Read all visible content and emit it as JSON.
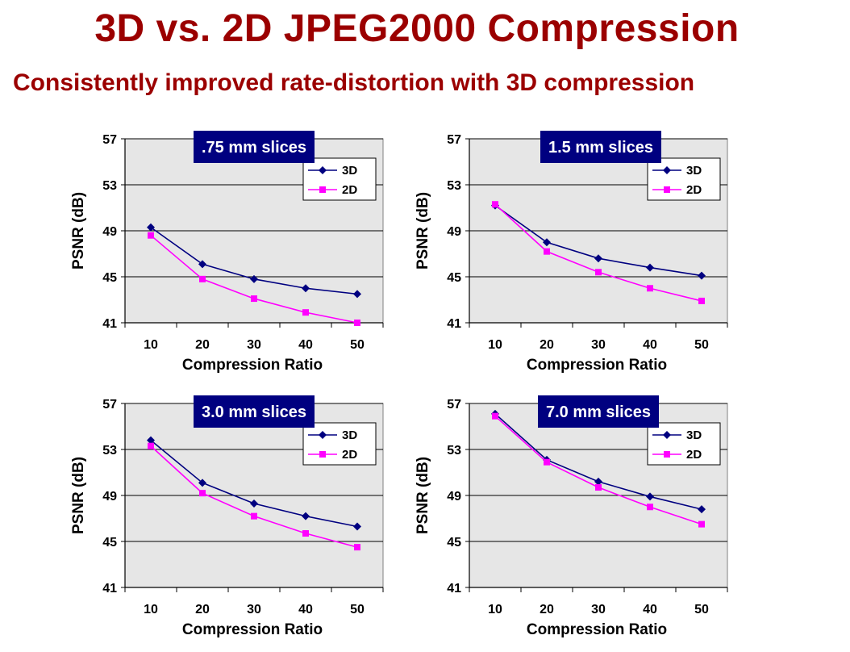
{
  "title": "3D vs. 2D JPEG2000 Compression",
  "subtitle": "Consistently improved rate-distortion with 3D compression",
  "colors": {
    "title": "#9b0000",
    "series_3d": "#000080",
    "series_2d": "#ff00ff",
    "plot_bg": "#e6e6e6",
    "box_bg": "#000080",
    "box_text": "#ffffff"
  },
  "chart_data": [
    {
      "type": "line",
      "title": ".75 mm slices",
      "xlabel": "Compression Ratio",
      "ylabel": "PSNR (dB)",
      "x": [
        10,
        20,
        30,
        40,
        50
      ],
      "ylim": [
        41,
        57
      ],
      "yticks": [
        41,
        45,
        49,
        53,
        57
      ],
      "grid": "horizontal",
      "legend": "top-right",
      "series": [
        {
          "name": "3D",
          "values": [
            49.3,
            46.1,
            44.8,
            44.0,
            43.5
          ]
        },
        {
          "name": "2D",
          "values": [
            48.6,
            44.8,
            43.1,
            41.9,
            41.0
          ]
        }
      ]
    },
    {
      "type": "line",
      "title": "1.5 mm slices",
      "xlabel": "Compression Ratio",
      "ylabel": "PSNR (dB)",
      "x": [
        10,
        20,
        30,
        40,
        50
      ],
      "ylim": [
        41,
        57
      ],
      "yticks": [
        41,
        45,
        49,
        53,
        57
      ],
      "grid": "horizontal",
      "legend": "top-right",
      "series": [
        {
          "name": "3D",
          "values": [
            51.2,
            48.0,
            46.6,
            45.8,
            45.1
          ]
        },
        {
          "name": "2D",
          "values": [
            51.3,
            47.2,
            45.4,
            44.0,
            42.9
          ]
        }
      ]
    },
    {
      "type": "line",
      "title": "3.0 mm slices",
      "xlabel": "Compression Ratio",
      "ylabel": "PSNR (dB)",
      "x": [
        10,
        20,
        30,
        40,
        50
      ],
      "ylim": [
        41,
        57
      ],
      "yticks": [
        41,
        45,
        49,
        53,
        57
      ],
      "grid": "horizontal",
      "legend": "top-right",
      "series": [
        {
          "name": "3D",
          "values": [
            53.8,
            50.1,
            48.3,
            47.2,
            46.3
          ]
        },
        {
          "name": "2D",
          "values": [
            53.3,
            49.2,
            47.2,
            45.7,
            44.5
          ]
        }
      ]
    },
    {
      "type": "line",
      "title": "7.0 mm slices",
      "xlabel": "Compression Ratio",
      "ylabel": "PSNR (dB)",
      "x": [
        10,
        20,
        30,
        40,
        50
      ],
      "ylim": [
        41,
        57
      ],
      "yticks": [
        41,
        45,
        49,
        53,
        57
      ],
      "grid": "horizontal",
      "legend": "top-right",
      "series": [
        {
          "name": "3D",
          "values": [
            56.1,
            52.1,
            50.2,
            48.9,
            47.8
          ]
        },
        {
          "name": "2D",
          "values": [
            55.9,
            51.9,
            49.7,
            48.0,
            46.5
          ]
        }
      ]
    }
  ]
}
